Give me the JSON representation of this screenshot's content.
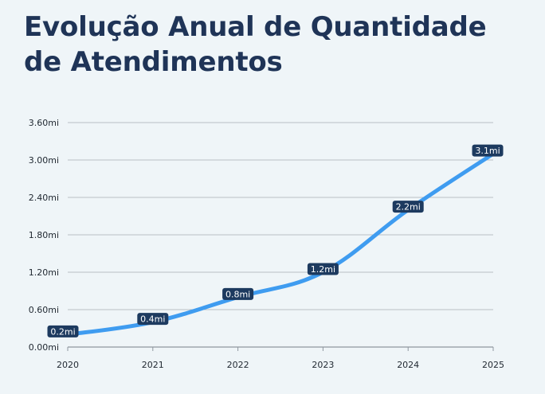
{
  "title": "Evolução Anual de Quantidade de Atendimentos",
  "chart_data": {
    "type": "line",
    "title": "Evolução Anual de Quantidade de Atendimentos",
    "xlabel": "",
    "ylabel": "",
    "x": [
      "2020",
      "2021",
      "2022",
      "2023",
      "2024",
      "2025"
    ],
    "series": [
      {
        "name": "Quantidade de Atendimentos",
        "values": [
          0.2,
          0.4,
          0.8,
          1.2,
          2.2,
          3.1
        ],
        "labels": [
          "0.2mi",
          "0.4mi",
          "0.8mi",
          "1.2mi",
          "2.2mi",
          "3.1mi"
        ]
      }
    ],
    "yticks": [
      0,
      0.6,
      1.2,
      1.8,
      2.4,
      3.0,
      3.6
    ],
    "ytick_labels": [
      "0.00mi",
      "0.60mi",
      "1.20mi",
      "1.80mi",
      "2.40mi",
      "3.00mi",
      "3.60mi"
    ],
    "ylim": [
      0,
      3.6
    ],
    "grid": true,
    "legend": "none"
  },
  "colors": {
    "line": "#3f9cf0",
    "label_bg": "#1d3a5f",
    "grid": "#b8bec4",
    "axis": "#8f979f",
    "title": "#1f3457",
    "background": "#eff5f8"
  }
}
